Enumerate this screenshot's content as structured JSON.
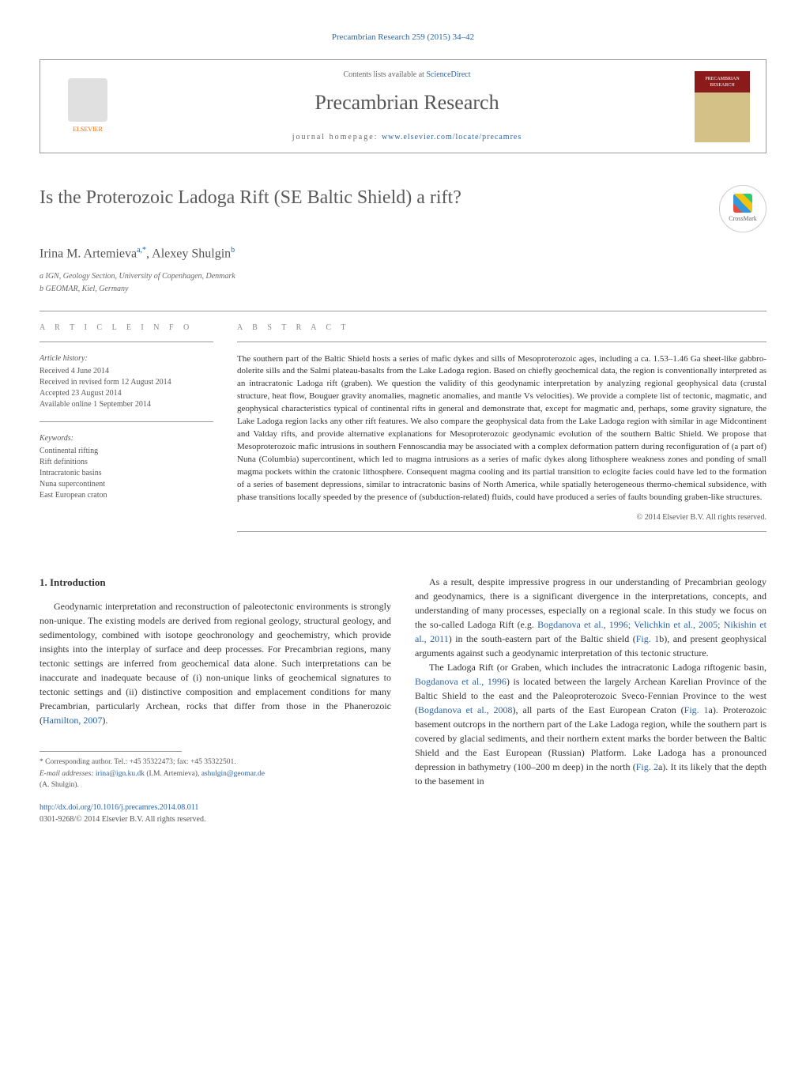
{
  "journal_ref": "Precambrian Research 259 (2015) 34–42",
  "header": {
    "contents_prefix": "Contents lists available at ",
    "contents_link": "ScienceDirect",
    "journal_name": "Precambrian Research",
    "homepage_label": "journal homepage: ",
    "homepage_url": "www.elsevier.com/locate/precamres",
    "publisher": "ELSEVIER",
    "cover_text": "PRECAMBRIAN RESEARCH"
  },
  "crossmark_label": "CrossMark",
  "title": "Is the Proterozoic Ladoga Rift (SE Baltic Shield) a rift?",
  "authors_html": "Irina M. Artemieva",
  "author1_sup": "a,*",
  "author2": "Alexey Shulgin",
  "author2_sup": "b",
  "affiliations": {
    "a": "a IGN, Geology Section, University of Copenhagen, Denmark",
    "b": "b GEOMAR, Kiel, Germany"
  },
  "info": {
    "heading": "A R T I C L E   I N F O",
    "history_label": "Article history:",
    "history": {
      "received": "Received 4 June 2014",
      "revised": "Received in revised form 12 August 2014",
      "accepted": "Accepted 23 August 2014",
      "online": "Available online 1 September 2014"
    },
    "keywords_label": "Keywords:",
    "keywords": [
      "Continental rifting",
      "Rift definitions",
      "Intracratonic basins",
      "Nuna supercontinent",
      "East European craton"
    ]
  },
  "abstract": {
    "heading": "A B S T R A C T",
    "text": "The southern part of the Baltic Shield hosts a series of mafic dykes and sills of Mesoproterozoic ages, including a ca. 1.53–1.46 Ga sheet-like gabbro-dolerite sills and the Salmi plateau-basalts from the Lake Ladoga region. Based on chiefly geochemical data, the region is conventionally interpreted as an intracratonic Ladoga rift (graben). We question the validity of this geodynamic interpretation by analyzing regional geophysical data (crustal structure, heat flow, Bouguer gravity anomalies, magnetic anomalies, and mantle Vs velocities). We provide a complete list of tectonic, magmatic, and geophysical characteristics typical of continental rifts in general and demonstrate that, except for magmatic and, perhaps, some gravity signature, the Lake Ladoga region lacks any other rift features. We also compare the geophysical data from the Lake Ladoga region with similar in age Midcontinent and Valday rifts, and provide alternative explanations for Mesoproterozoic geodynamic evolution of the southern Baltic Shield. We propose that Mesoproterozoic mafic intrusions in southern Fennoscandia may be associated with a complex deformation pattern during reconfiguration of (a part of) Nuna (Columbia) supercontinent, which led to magma intrusions as a series of mafic dykes along lithosphere weakness zones and ponding of small magma pockets within the cratonic lithosphere. Consequent magma cooling and its partial transition to eclogite facies could have led to the formation of a series of basement depressions, similar to intracratonic basins of North America, while spatially heterogeneous thermo-chemical subsidence, with phase transitions locally speeded by the presence of (subduction-related) fluids, could have produced a series of faults bounding graben-like structures.",
    "copyright": "© 2014 Elsevier B.V. All rights reserved."
  },
  "body": {
    "section1_heading": "1. Introduction",
    "col1_p1a": "Geodynamic interpretation and reconstruction of paleotectonic environments is strongly non-unique. The existing models are derived from regional geology, structural geology, and sedimentology, combined with isotope geochronology and geochemistry, which provide insights into the interplay of surface and deep processes. For Precambrian regions, many tectonic settings are inferred from geochemical data alone. Such interpretations can be inaccurate and inadequate because of (i) non-unique links of geochemical signatures to tectonic settings and (ii) distinctive composition and emplacement conditions for many Precambrian, particularly Archean, rocks that differ from those in the Phanerozoic (",
    "col1_cite1": "Hamilton, 2007",
    "col1_p1b": ").",
    "col2_p1a": "As a result, despite impressive progress in our understanding of Precambrian geology and geodynamics, there is a significant divergence in the interpretations, concepts, and understanding of many processes, especially on a regional scale. In this study we focus on the so-called Ladoga Rift (e.g. ",
    "col2_cite1": "Bogdanova et al., 1996; Velichkin et al., 2005; Nikishin et al., 2011",
    "col2_p1b": ") in the south-eastern part of the Baltic shield (",
    "col2_cite2": "Fig. 1",
    "col2_p1c": "b), and present geophysical arguments against such a geodynamic interpretation of this tectonic structure.",
    "col2_p2a": "The Ladoga Rift (or Graben, which includes the intracratonic Ladoga riftogenic basin, ",
    "col2_cite3": "Bogdanova et al., 1996",
    "col2_p2b": ") is located between the largely Archean Karelian Province of the Baltic Shield to the east and the Paleoproterozoic Sveco-Fennian Province to the west (",
    "col2_cite4": "Bogdanova et al., 2008",
    "col2_p2c": "), all parts of the East European Craton (",
    "col2_cite5": "Fig. 1",
    "col2_p2d": "a). Proterozoic basement outcrops in the northern part of the Lake Ladoga region, while the southern part is covered by glacial sediments, and their northern extent marks the border between the Baltic Shield and the East European (Russian) Platform. Lake Ladoga has a pronounced depression in bathymetry (100–200 m deep) in the north (",
    "col2_cite6": "Fig. 2",
    "col2_p2e": "a). It its likely that the depth to the basement in"
  },
  "footer": {
    "corr_label": "* Corresponding author. Tel.: +45 35322473; fax: +45 35322501.",
    "email_label": "E-mail addresses: ",
    "email1": "irina@ign.ku.dk",
    "email1_name": " (I.M. Artemieva), ",
    "email2": "ashulgin@geomar.de",
    "email2_name": "(A. Shulgin).",
    "doi": "http://dx.doi.org/10.1016/j.precamres.2014.08.011",
    "issn_line": "0301-9268/© 2014 Elsevier B.V. All rights reserved."
  },
  "colors": {
    "link": "#2864a8",
    "text": "#333333",
    "muted": "#666666",
    "accent_orange": "#ff6600"
  }
}
